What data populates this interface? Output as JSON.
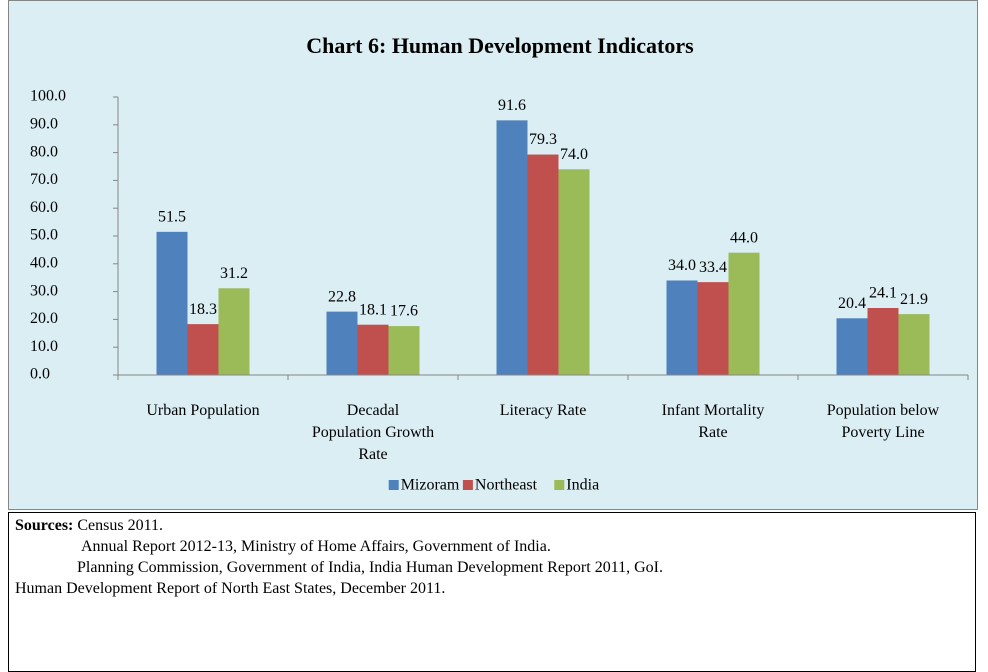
{
  "chart_data": {
    "type": "bar",
    "title": "Chart 6: Human Development Indicators",
    "categories": [
      "Urban Population",
      "Decadal Population Growth Rate",
      "Literacy Rate",
      "Infant Mortality Rate",
      "Population below Poverty Line"
    ],
    "series": [
      {
        "name": "Mizoram",
        "color": "#4f81bd",
        "values": [
          51.5,
          22.8,
          91.6,
          34.0,
          20.4
        ],
        "value_labels": [
          "51.5",
          "22.8",
          "91.6",
          "34.0",
          "20.4"
        ]
      },
      {
        "name": "Northeast",
        "color": "#c0504d",
        "values": [
          18.3,
          18.1,
          79.3,
          33.4,
          24.1
        ],
        "value_labels": [
          "18.3",
          "18.1",
          "79.3",
          "33.4",
          "24.1"
        ]
      },
      {
        "name": "India",
        "color": "#9bbb59",
        "values": [
          31.2,
          17.6,
          74.0,
          44.0,
          21.9
        ],
        "value_labels": [
          "31.2",
          "17.6",
          "74.0",
          "44.0",
          "21.9"
        ]
      }
    ],
    "ylim": [
      0,
      100
    ],
    "yticks": [
      {
        "value": 0,
        "label": "0.0"
      },
      {
        "value": 10,
        "label": "10.0"
      },
      {
        "value": 20,
        "label": "20.0"
      },
      {
        "value": 30,
        "label": "30.0"
      },
      {
        "value": 40,
        "label": "40.0"
      },
      {
        "value": 50,
        "label": "50.0"
      },
      {
        "value": 60,
        "label": "60.0"
      },
      {
        "value": 70,
        "label": "70.0"
      },
      {
        "value": 80,
        "label": "80.0"
      },
      {
        "value": 90,
        "label": "90.0"
      },
      {
        "value": 100,
        "label": "100.0"
      }
    ],
    "grid": false,
    "legend": "bottom"
  },
  "sources": {
    "label": "Sources:",
    "lines": [
      "Census 2011.",
      "Annual Report 2012-13, Ministry of Home Affairs, Government of India.",
      "Planning Commission, Government of India, India Human Development Report 2011, GoI.",
      "Human Development Report of North East States, December 2011."
    ]
  }
}
